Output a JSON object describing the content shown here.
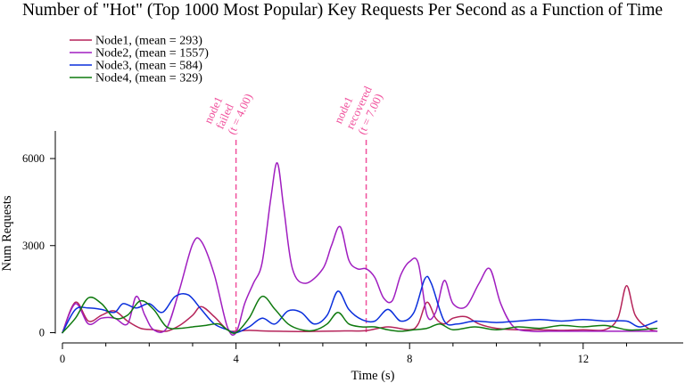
{
  "chart_data": {
    "type": "line",
    "title": "Number of \"Hot\" (Top 1000 Most Popular) Key Requests Per Second as a Function of Time",
    "xlabel": "Time (s)",
    "ylabel": "Num Requests",
    "xlim": [
      0,
      14
    ],
    "ylim": [
      0,
      7000
    ],
    "xticks": [
      0,
      4,
      8,
      12
    ],
    "yticks": [
      0,
      3000,
      6000
    ],
    "grid": false,
    "legend_placement": "top-left",
    "series": [
      {
        "name": "Node1, (mean = 293)",
        "color": "#b5245a",
        "x": [
          0,
          0.3,
          0.6,
          0.9,
          1.2,
          1.5,
          1.8,
          2.1,
          2.4,
          2.7,
          3.0,
          3.2,
          3.5,
          3.8,
          4.0,
          4.3,
          4.6,
          5.0,
          5.5,
          6.0,
          6.5,
          7.0,
          7.5,
          8.0,
          8.2,
          8.4,
          8.6,
          8.8,
          9.0,
          9.3,
          9.6,
          10.0,
          10.5,
          11.0,
          11.5,
          12.0,
          12.5,
          12.8,
          13.0,
          13.2,
          13.5,
          13.7
        ],
        "y": [
          0,
          1050,
          400,
          600,
          750,
          400,
          150,
          100,
          50,
          250,
          600,
          900,
          550,
          100,
          50,
          80,
          60,
          50,
          40,
          50,
          60,
          70,
          200,
          100,
          300,
          1050,
          500,
          300,
          500,
          550,
          300,
          150,
          100,
          100,
          80,
          100,
          100,
          500,
          1620,
          600,
          150,
          50
        ]
      },
      {
        "name": "Node2, (mean = 1557)",
        "color": "#a01ec0",
        "x": [
          0,
          0.3,
          0.6,
          0.9,
          1.2,
          1.5,
          1.7,
          1.9,
          2.1,
          2.4,
          2.7,
          3.0,
          3.2,
          3.5,
          3.8,
          4.0,
          4.2,
          4.4,
          4.6,
          4.8,
          4.95,
          5.1,
          5.3,
          5.6,
          6.0,
          6.2,
          6.4,
          6.6,
          6.8,
          7.0,
          7.2,
          7.4,
          7.6,
          7.8,
          8.0,
          8.2,
          8.4,
          8.6,
          8.8,
          9.0,
          9.3,
          9.6,
          9.85,
          10.1,
          10.4,
          10.8,
          11.2,
          11.6,
          12.0,
          12.5,
          13.0,
          13.5,
          13.7
        ],
        "y": [
          0,
          1000,
          300,
          500,
          500,
          300,
          1250,
          600,
          100,
          150,
          1500,
          3050,
          3150,
          2000,
          200,
          0,
          1000,
          1700,
          2400,
          4600,
          5850,
          4300,
          2200,
          1700,
          2200,
          3000,
          3650,
          2500,
          2200,
          2200,
          1900,
          1200,
          1100,
          2000,
          2450,
          2400,
          600,
          700,
          1800,
          1000,
          900,
          1700,
          2200,
          1000,
          200,
          50,
          50,
          50,
          50,
          50,
          50,
          50,
          50
        ]
      },
      {
        "name": "Node3, (mean = 584)",
        "color": "#0a2fdc",
        "x": [
          0,
          0.3,
          0.6,
          0.9,
          1.2,
          1.4,
          1.7,
          2.0,
          2.3,
          2.6,
          2.9,
          3.2,
          3.5,
          3.8,
          4.0,
          4.3,
          4.6,
          4.9,
          5.2,
          5.5,
          5.8,
          6.1,
          6.35,
          6.6,
          6.9,
          7.2,
          7.5,
          7.8,
          8.1,
          8.35,
          8.5,
          8.8,
          9.1,
          9.5,
          10.0,
          10.5,
          11.0,
          11.5,
          12.0,
          12.5,
          13.0,
          13.3,
          13.7
        ],
        "y": [
          0,
          800,
          850,
          800,
          700,
          1000,
          850,
          1000,
          700,
          1250,
          1300,
          800,
          300,
          100,
          0,
          200,
          500,
          300,
          750,
          700,
          300,
          600,
          1430,
          800,
          450,
          400,
          800,
          400,
          700,
          1850,
          1700,
          400,
          300,
          400,
          350,
          400,
          450,
          400,
          450,
          400,
          400,
          200,
          400
        ]
      },
      {
        "name": "Node4, (mean = 329)",
        "color": "#0f7a0f",
        "x": [
          0,
          0.3,
          0.6,
          0.9,
          1.2,
          1.5,
          1.8,
          2.1,
          2.4,
          2.7,
          3.0,
          3.3,
          3.6,
          3.8,
          4.0,
          4.3,
          4.6,
          4.9,
          5.2,
          5.5,
          5.8,
          6.1,
          6.35,
          6.6,
          6.9,
          7.2,
          7.5,
          7.8,
          8.1,
          8.4,
          8.7,
          9.0,
          9.5,
          10.0,
          10.5,
          11.0,
          11.5,
          12.0,
          12.5,
          13.0,
          13.3,
          13.7
        ],
        "y": [
          0,
          500,
          1200,
          1000,
          500,
          600,
          1100,
          800,
          200,
          150,
          200,
          250,
          300,
          100,
          0,
          500,
          1250,
          800,
          300,
          100,
          80,
          300,
          700,
          300,
          200,
          200,
          100,
          50,
          100,
          150,
          300,
          100,
          200,
          100,
          200,
          150,
          250,
          200,
          250,
          100,
          100,
          150
        ]
      }
    ],
    "annotations": [
      {
        "x": 4.0,
        "lines": [
          "node1",
          "failed",
          "(t = 4.00)"
        ],
        "color": "#f0509c"
      },
      {
        "x": 7.0,
        "lines": [
          "node1",
          "recovered",
          "(t = 7.00)"
        ],
        "color": "#f0509c"
      }
    ]
  }
}
